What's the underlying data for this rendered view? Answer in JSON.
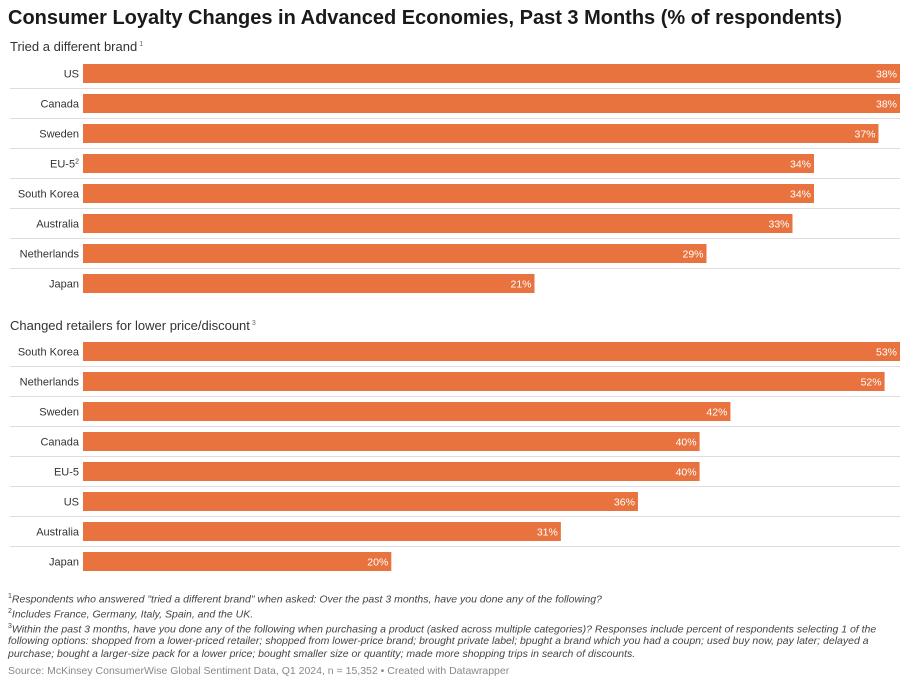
{
  "title": "Consumer Loyalty Changes in Advanced Economies, Past 3 Months (% of respondents)",
  "colors": {
    "bar": "#e8733f",
    "separator": "#dddddd",
    "label_inside": "#ffffff",
    "country": "#333333"
  },
  "chart_data": [
    {
      "type": "bar",
      "orientation": "horizontal",
      "title": "Tried a different brand",
      "title_footnote": "1",
      "value_suffix": "%",
      "xlim": [
        0,
        38
      ],
      "categories": [
        "US",
        "Canada",
        "Sweden",
        "EU-5",
        "South Korea",
        "Australia",
        "Netherlands",
        "Japan"
      ],
      "category_footnotes": {
        "EU-5": "2"
      },
      "values": [
        38,
        38,
        37,
        34,
        34,
        33,
        29,
        21
      ]
    },
    {
      "type": "bar",
      "orientation": "horizontal",
      "title": "Changed retailers for lower price/discount",
      "title_footnote": "3",
      "value_suffix": "%",
      "xlim": [
        0,
        53
      ],
      "categories": [
        "South Korea",
        "Netherlands",
        "Sweden",
        "Canada",
        "EU-5",
        "US",
        "Australia",
        "Japan"
      ],
      "category_footnotes": {},
      "values": [
        53,
        52,
        42,
        40,
        40,
        36,
        31,
        20
      ]
    }
  ],
  "footnotes": [
    {
      "mark": "1",
      "text": "Respondents who answered \"tried a different brand\" when asked: Over the past 3 months, have you done any of the following?"
    },
    {
      "mark": "2",
      "text": "Includes France, Germany, Italy, Spain, and the UK."
    },
    {
      "mark": "3",
      "text": "Within the past 3 months, have you done any of the following when purchasing a product (asked across multiple categories)? Responses include percent of respondents selecting 1 of the following options: shopped from a lower-priced retailer; shopped from lower-price brand; brought private label; bpught a brand which you had a coupn; used buy now, pay later; delayed a purchase; bought a larger-size pack for a lower price; bought smaller size or quantity; made more shopping trips in search of discounts."
    }
  ],
  "source": "Source: McKinsey ConsumerWise Global Sentiment Data, Q1 2024, n = 15,352 • Created with Datawrapper"
}
